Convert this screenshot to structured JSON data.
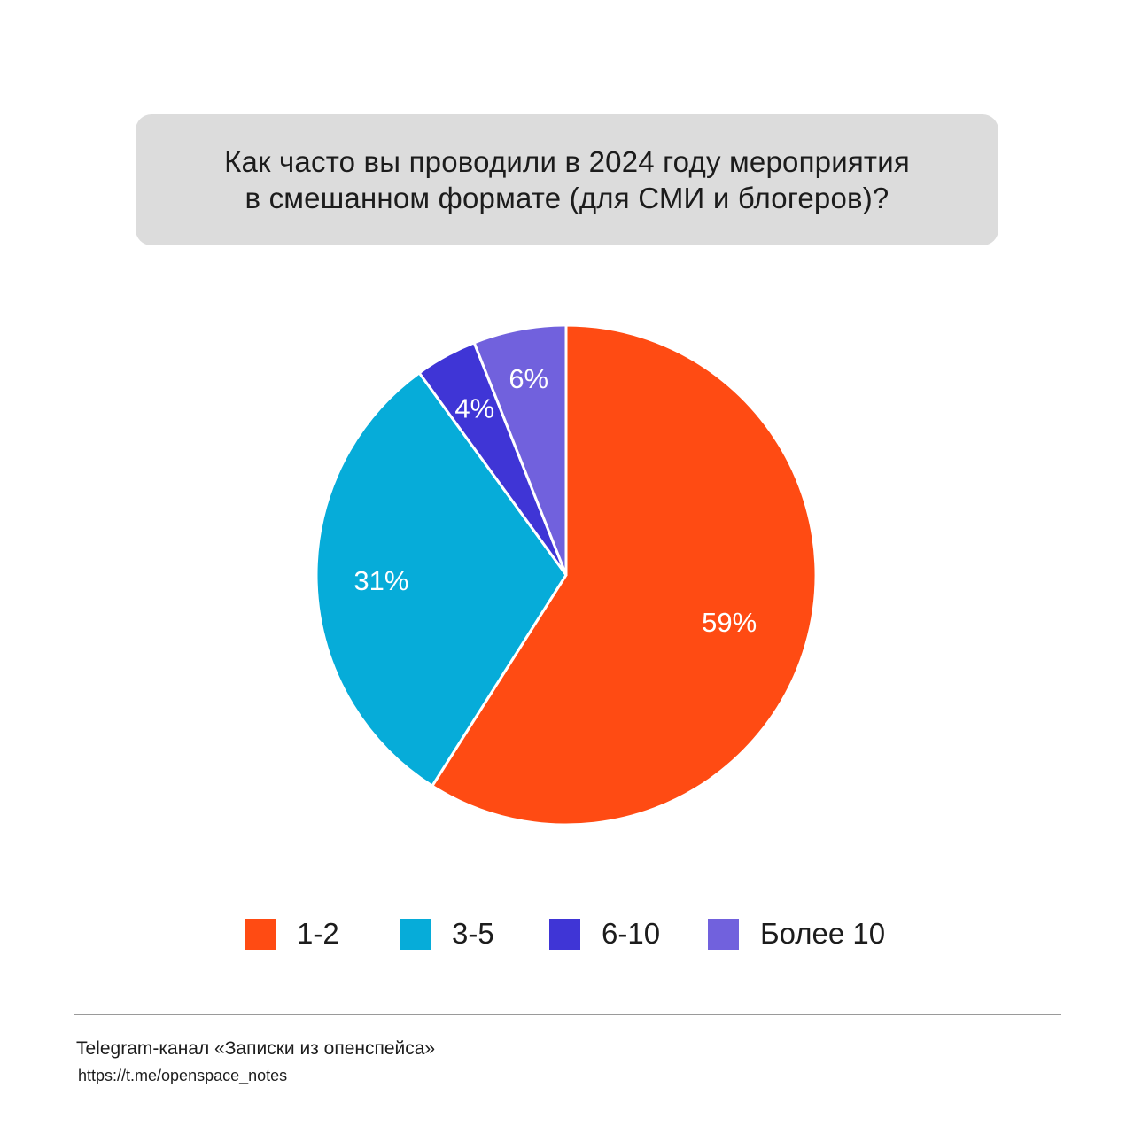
{
  "title": {
    "line1": "Как часто вы проводили в 2024 году мероприятия",
    "line2": "в смешанном формате (для СМИ и блогеров)?"
  },
  "chart_data": {
    "type": "pie",
    "categories": [
      "1-2",
      "3-5",
      "6-10",
      "Более 10"
    ],
    "values": [
      59,
      31,
      4,
      6
    ],
    "value_labels": [
      "59%",
      "31%",
      "4%",
      "6%"
    ],
    "colors": [
      "#ff4b13",
      "#06acd9",
      "#3f35d6",
      "#7161dd"
    ],
    "start": "12 o'clock",
    "direction": "clockwise",
    "legend_position": "bottom"
  },
  "legend": [
    {
      "label": "1-2",
      "color": "#ff4b13"
    },
    {
      "label": "3-5",
      "color": "#06acd9"
    },
    {
      "label": "6-10",
      "color": "#3f35d6"
    },
    {
      "label": "Более 10",
      "color": "#7161dd"
    }
  ],
  "footer": {
    "channel": "Telegram-канал «Записки из опенспейса»",
    "url": "https://t.me/openspace_notes"
  }
}
